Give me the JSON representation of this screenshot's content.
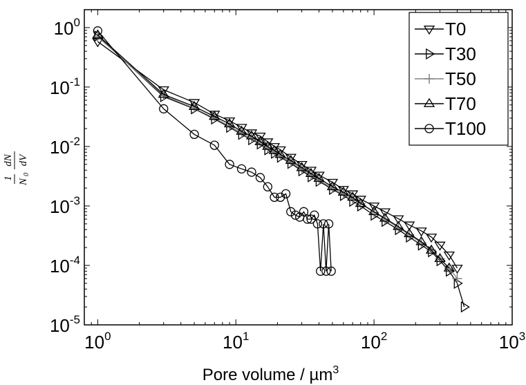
{
  "chart_data": {
    "type": "line",
    "title": "",
    "xlabel": "Pore volume / µm",
    "xlabel_sup": "3",
    "ylabel": {
      "num_left": "1",
      "den_left": "N",
      "den_left_sub": "0",
      "num_right": "dN",
      "den_right": "dV"
    },
    "xscale": "log",
    "yscale": "log",
    "xlim": [
      0.8,
      1000
    ],
    "ylim": [
      1e-05,
      2
    ],
    "x_ticks": [
      {
        "base": "10",
        "exp": "0"
      },
      {
        "base": "10",
        "exp": "1"
      },
      {
        "base": "10",
        "exp": "2"
      },
      {
        "base": "10",
        "exp": "3"
      }
    ],
    "y_ticks": [
      {
        "base": "10",
        "exp": "0"
      },
      {
        "base": "10",
        "exp": "-1"
      },
      {
        "base": "10",
        "exp": "-2"
      },
      {
        "base": "10",
        "exp": "-3"
      },
      {
        "base": "10",
        "exp": "-4"
      },
      {
        "base": "10",
        "exp": "-5"
      }
    ],
    "x_tick_values": [
      1,
      10,
      100,
      1000
    ],
    "y_tick_values": [
      1,
      0.1,
      0.01,
      0.001,
      0.0001,
      1e-05
    ],
    "grid": false,
    "legend_position": "top-right",
    "series": [
      {
        "name": "T0",
        "marker": "triangle-down",
        "color": "#000000",
        "x": [
          1,
          3,
          5,
          7,
          9,
          11,
          13,
          15,
          17,
          19,
          21,
          25,
          30,
          35,
          40,
          50,
          60,
          70,
          80,
          100,
          120,
          150,
          180,
          220,
          260,
          300,
          350,
          400
        ],
        "y": [
          0.58,
          0.09,
          0.055,
          0.035,
          0.027,
          0.021,
          0.017,
          0.015,
          0.012,
          0.01,
          0.0088,
          0.0066,
          0.005,
          0.004,
          0.0033,
          0.0025,
          0.0019,
          0.0016,
          0.0013,
          0.001,
          0.0008,
          0.00061,
          0.00048,
          0.00038,
          0.0003,
          0.00022,
          0.00015,
          9e-05
        ]
      },
      {
        "name": "T30",
        "marker": "triangle-right",
        "color": "#000000",
        "x": [
          1,
          3,
          5,
          7,
          9,
          11,
          13,
          15,
          17,
          19,
          21,
          25,
          30,
          35,
          40,
          50,
          60,
          70,
          80,
          100,
          120,
          150,
          180,
          220,
          260,
          300,
          350,
          400,
          450
        ],
        "y": [
          0.72,
          0.069,
          0.043,
          0.029,
          0.021,
          0.016,
          0.013,
          0.011,
          0.0088,
          0.0077,
          0.0066,
          0.0052,
          0.0039,
          0.0031,
          0.0026,
          0.0019,
          0.0015,
          0.0012,
          0.001,
          0.0007,
          0.00055,
          0.0004,
          0.0003,
          0.00022,
          0.00017,
          0.00012,
          8e-05,
          5e-05,
          2e-05
        ]
      },
      {
        "name": "T50",
        "marker": "plus",
        "color": "#808080",
        "x": [
          1,
          3,
          5,
          7,
          9,
          11,
          13,
          15,
          17,
          19,
          21,
          25,
          30,
          35,
          40,
          50,
          60,
          70,
          80,
          100,
          120,
          150,
          180,
          220,
          260,
          300,
          350,
          400
        ],
        "y": [
          0.7,
          0.072,
          0.044,
          0.03,
          0.022,
          0.017,
          0.014,
          0.012,
          0.0095,
          0.008,
          0.0069,
          0.0055,
          0.0041,
          0.0033,
          0.0027,
          0.002,
          0.0016,
          0.0013,
          0.0011,
          0.00078,
          0.0006,
          0.00043,
          0.00033,
          0.00024,
          0.00018,
          0.00013,
          9e-05,
          6e-05
        ]
      },
      {
        "name": "T70",
        "marker": "triangle-up",
        "color": "#000000",
        "x": [
          1,
          3,
          5,
          7,
          9,
          11,
          13,
          15,
          17,
          19,
          21,
          25,
          30,
          35,
          40,
          50,
          60,
          70,
          80,
          100,
          120,
          150,
          180,
          220,
          260,
          300,
          350
        ],
        "y": [
          0.75,
          0.075,
          0.047,
          0.032,
          0.024,
          0.018,
          0.015,
          0.012,
          0.01,
          0.0085,
          0.0073,
          0.0058,
          0.0044,
          0.0035,
          0.0029,
          0.0021,
          0.0017,
          0.0014,
          0.0011,
          0.0008,
          0.00062,
          0.00045,
          0.00034,
          0.00025,
          0.00018,
          0.00013,
          9e-05
        ]
      },
      {
        "name": "T100",
        "marker": "circle",
        "color": "#000000",
        "x": [
          1,
          3,
          5,
          7,
          9,
          11,
          13,
          15,
          17,
          19,
          21,
          23,
          25,
          27,
          29,
          31,
          33,
          35,
          37,
          39,
          41,
          43,
          45,
          47,
          49
        ],
        "y": [
          0.88,
          0.043,
          0.016,
          0.0105,
          0.005,
          0.0042,
          0.0037,
          0.003,
          0.0021,
          0.0014,
          0.0014,
          0.0016,
          0.0008,
          0.0007,
          0.00065,
          0.0008,
          0.0006,
          0.0006,
          0.0007,
          0.0005,
          8e-05,
          0.0005,
          8e-05,
          0.0005,
          8e-05
        ]
      }
    ]
  }
}
